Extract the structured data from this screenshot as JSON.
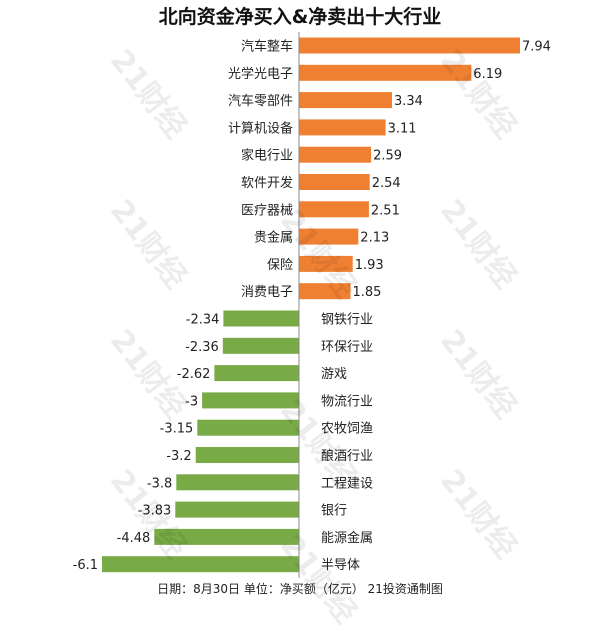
{
  "watermark_text": "21财经",
  "chart_data": {
    "type": "bar",
    "orientation": "horizontal",
    "title": "北向资金净买入&净卖出十大行业",
    "footnote": "日期：8月30日 单位：净买额（亿元） 21投资通制图",
    "positive_color": "#ef8032",
    "negative_color": "#78ab46",
    "categories": [
      "汽车整车",
      "光学光电子",
      "汽车零部件",
      "计算机设备",
      "家电行业",
      "软件开发",
      "医疗器械",
      "贵金属",
      "保险",
      "消费电子",
      "钢铁行业",
      "环保行业",
      "游戏",
      "物流行业",
      "农牧饲渔",
      "酿酒行业",
      "工程建设",
      "银行",
      "能源金属",
      "半导体"
    ],
    "values": [
      7.94,
      6.19,
      3.34,
      3.11,
      2.59,
      2.54,
      2.51,
      2.13,
      1.93,
      1.85,
      -2.34,
      -2.36,
      -2.62,
      -3,
      -3.15,
      -3.2,
      -3.8,
      -3.83,
      -4.48,
      -6.1
    ],
    "value_labels": [
      "7.94",
      "6.19",
      "3.34",
      "3.11",
      "2.59",
      "2.54",
      "2.51",
      "2.13",
      "1.93",
      "1.85",
      "-2.34",
      "-2.36",
      "-2.62",
      "-3",
      "-3.15",
      "-3.2",
      "-3.8",
      "-3.83",
      "-4.48",
      "-6.1"
    ],
    "xlim": [
      -6.1,
      7.94
    ],
    "grid": false,
    "legend": "none"
  }
}
